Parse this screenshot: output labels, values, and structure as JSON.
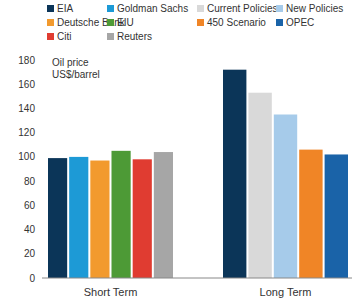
{
  "chart_data": {
    "type": "bar",
    "y_label": "Oil price\nUS$/barrel",
    "categories": [
      "Short Term",
      "Long Term"
    ],
    "series": [
      {
        "name": "EIA",
        "color": "#0b3558",
        "values": [
          99,
          172
        ]
      },
      {
        "name": "Goldman Sachs",
        "color": "#1d9ad6",
        "values": [
          100,
          null
        ]
      },
      {
        "name": "Current Policies",
        "color": "#d9d9d9",
        "values": [
          null,
          153
        ]
      },
      {
        "name": "New Policies",
        "color": "#a6cbea",
        "values": [
          null,
          135
        ]
      },
      {
        "name": "Deutsche Bank",
        "color": "#f29a2e",
        "values": [
          97,
          null
        ]
      },
      {
        "name": "EIU",
        "color": "#4d9a36",
        "values": [
          105,
          null
        ]
      },
      {
        "name": "450 Scenario",
        "color": "#f08526",
        "values": [
          null,
          106
        ]
      },
      {
        "name": "OPEC",
        "color": "#1a63a8",
        "values": [
          null,
          102
        ]
      },
      {
        "name": "Citi",
        "color": "#e03c31",
        "values": [
          98,
          null
        ]
      },
      {
        "name": "Reuters",
        "color": "#a6a6a6",
        "values": [
          104,
          null
        ]
      }
    ],
    "ylim": [
      0,
      180
    ],
    "yticks": [
      0,
      20,
      40,
      60,
      80,
      100,
      120,
      140,
      160,
      180
    ],
    "grid": false,
    "legend": "top"
  }
}
